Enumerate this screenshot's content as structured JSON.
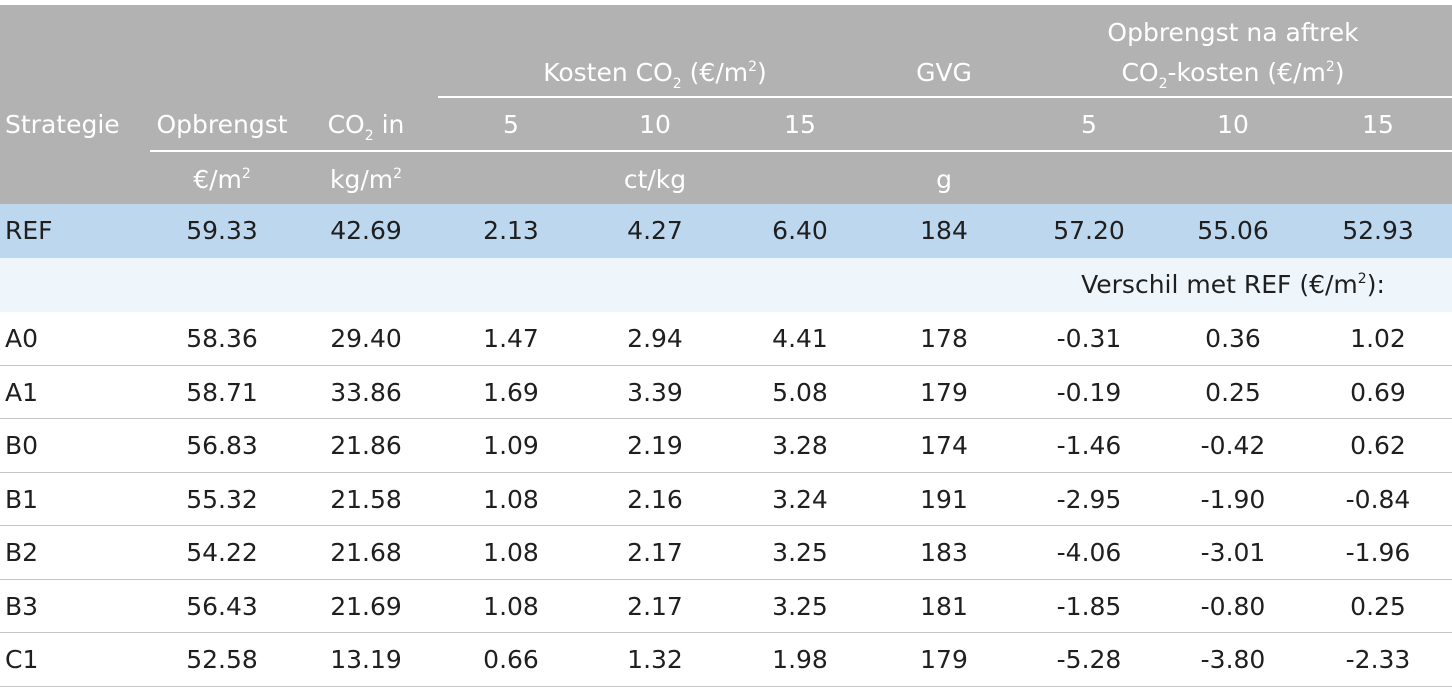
{
  "header": {
    "strategie": "Strategie",
    "opbrengst": "Opbrengst",
    "co2_in_a": "CO",
    "co2_in_sub": "2",
    "co2_in_b": " in",
    "kosten_a": "Kosten CO",
    "kosten_sub": "2",
    "kosten_b": " (€/m",
    "kosten_sup": "2",
    "kosten_c": ")",
    "gvg": "GVG",
    "na_aftrek_line1": "Opbrengst na aftrek",
    "na_aftrek_a": "CO",
    "na_aftrek_sub": "2",
    "na_aftrek_b": "-kosten (€/m",
    "na_aftrek_sup": "2",
    "na_aftrek_c": ")",
    "price_levels": [
      "5",
      "10",
      "15"
    ],
    "unit_opbrengst_a": "€/m",
    "unit_opbrengst_sup": "2",
    "unit_co2_a": "kg/m",
    "unit_co2_sup": "2",
    "unit_kosten": "ct/kg",
    "unit_gvg": "g"
  },
  "reference_row": [
    "REF",
    "59.33",
    "42.69",
    "2.13",
    "4.27",
    "6.40",
    "184",
    "57.20",
    "55.06",
    "52.93"
  ],
  "note": {
    "text_a": "Verschil met REF (€/m",
    "sup": "2",
    "text_b": "):"
  },
  "rows": [
    [
      "A0",
      "58.36",
      "29.40",
      "1.47",
      "2.94",
      "4.41",
      "178",
      "-0.31",
      "0.36",
      "1.02"
    ],
    [
      "A1",
      "58.71",
      "33.86",
      "1.69",
      "3.39",
      "5.08",
      "179",
      "-0.19",
      "0.25",
      "0.69"
    ],
    [
      "B0",
      "56.83",
      "21.86",
      "1.09",
      "2.19",
      "3.28",
      "174",
      "-1.46",
      "-0.42",
      "0.62"
    ],
    [
      "B1",
      "55.32",
      "21.58",
      "1.08",
      "2.16",
      "3.24",
      "191",
      "-2.95",
      "-1.90",
      "-0.84"
    ],
    [
      "B2",
      "54.22",
      "21.68",
      "1.08",
      "2.17",
      "3.25",
      "183",
      "-4.06",
      "-3.01",
      "-1.96"
    ],
    [
      "B3",
      "56.43",
      "21.69",
      "1.08",
      "2.17",
      "3.25",
      "181",
      "-1.85",
      "-0.80",
      "0.25"
    ],
    [
      "C1",
      "52.58",
      "13.19",
      "0.66",
      "1.32",
      "1.98",
      "179",
      "-5.28",
      "-3.80",
      "-2.33"
    ]
  ]
}
